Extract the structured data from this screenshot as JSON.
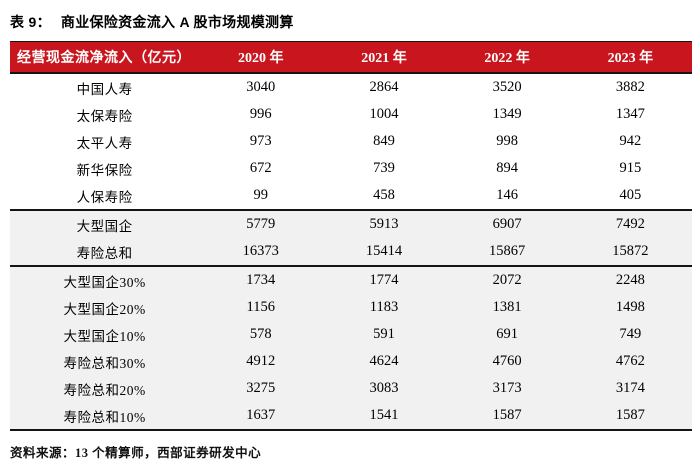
{
  "page": {
    "title_prefix": "表 9：",
    "title": "商业保险资金流入 A 股市场规模测算"
  },
  "table": {
    "header": {
      "label": "经营现金流净流入（亿元）",
      "years": [
        "2020 年",
        "2021 年",
        "2022 年",
        "2023 年"
      ]
    },
    "sections": [
      {
        "name": "companies",
        "shaded": false,
        "rows": [
          {
            "label": "中国人寿",
            "values": [
              "3040",
              "2864",
              "3520",
              "3882"
            ]
          },
          {
            "label": "太保寿险",
            "values": [
              "996",
              "1004",
              "1349",
              "1347"
            ]
          },
          {
            "label": "太平人寿",
            "values": [
              "973",
              "849",
              "998",
              "942"
            ]
          },
          {
            "label": "新华保险",
            "values": [
              "672",
              "739",
              "894",
              "915"
            ]
          },
          {
            "label": "人保寿险",
            "values": [
              "99",
              "458",
              "146",
              "405"
            ]
          }
        ]
      },
      {
        "name": "totals",
        "shaded": true,
        "rows": [
          {
            "label": "大型国企",
            "values": [
              "5779",
              "5913",
              "6907",
              "7492"
            ]
          },
          {
            "label": "寿险总和",
            "values": [
              "16373",
              "15414",
              "15867",
              "15872"
            ]
          }
        ]
      },
      {
        "name": "scenarios",
        "shaded": true,
        "rows": [
          {
            "label": "大型国企30%",
            "values": [
              "1734",
              "1774",
              "2072",
              "2248"
            ]
          },
          {
            "label": "大型国企20%",
            "values": [
              "1156",
              "1183",
              "1381",
              "1498"
            ]
          },
          {
            "label": "大型国企10%",
            "values": [
              "578",
              "591",
              "691",
              "749"
            ]
          },
          {
            "label": "寿险总和30%",
            "values": [
              "4912",
              "4624",
              "4760",
              "4762"
            ]
          },
          {
            "label": "寿险总和20%",
            "values": [
              "3275",
              "3083",
              "3173",
              "3174"
            ]
          },
          {
            "label": "寿险总和10%",
            "values": [
              "1637",
              "1541",
              "1587",
              "1587"
            ]
          }
        ]
      }
    ]
  },
  "footer": {
    "source_prefix": "资料来源：",
    "source_text": "13 个精算师，西部证券研发中心"
  },
  "colors": {
    "header_bg": "#C9161E",
    "header_text": "#FFFFFF",
    "shaded_bg": "#F1F1F1",
    "rule_line": "#151515"
  }
}
